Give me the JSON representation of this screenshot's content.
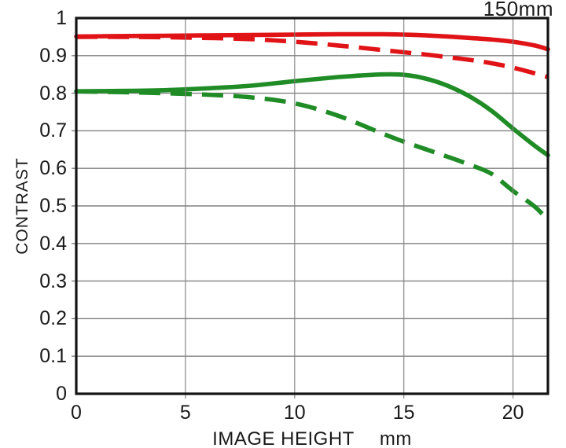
{
  "chart_data": {
    "type": "line",
    "title": "150mm",
    "xlabel": "IMAGE HEIGHT",
    "xlabel_unit": "mm",
    "ylabel": "CONTRAST",
    "xlim": [
      0,
      21.6
    ],
    "ylim": [
      0,
      1
    ],
    "grid": true,
    "legend": "none",
    "x_ticks": {
      "values": [
        0,
        5,
        10,
        15,
        20
      ],
      "labels": [
        "0",
        "5",
        "10",
        "15",
        "20"
      ]
    },
    "y_ticks": {
      "values": [
        1,
        0.9,
        0.8,
        0.7,
        0.6,
        0.5,
        0.4,
        0.3,
        0.2,
        0.1,
        0
      ],
      "labels": [
        "1",
        "0.9",
        "0.8",
        "0.7",
        "0.6",
        "0.5",
        "0.4",
        "0.3",
        "0.2",
        "0.1",
        "0"
      ]
    },
    "colors": {
      "red": "#e01317",
      "green": "#1f8c26",
      "grid": "#808080",
      "frame": "#141414"
    },
    "series": [
      {
        "name": "green-dashed",
        "color": "#1f8c26",
        "style": "dashed",
        "x": [
          0,
          2,
          4,
          6,
          8,
          10,
          12,
          14,
          15,
          16,
          17,
          18,
          19,
          20,
          21,
          21.6
        ],
        "y": [
          0.805,
          0.803,
          0.8,
          0.796,
          0.789,
          0.773,
          0.74,
          0.693,
          0.671,
          0.651,
          0.631,
          0.61,
          0.586,
          0.54,
          0.498,
          0.462
        ]
      },
      {
        "name": "green-solid",
        "color": "#1f8c26",
        "style": "solid",
        "x": [
          0,
          2,
          4,
          6,
          8,
          10,
          12,
          13,
          14,
          15,
          16,
          17,
          18,
          19,
          20,
          21,
          21.6
        ],
        "y": [
          0.805,
          0.806,
          0.808,
          0.813,
          0.82,
          0.832,
          0.843,
          0.847,
          0.85,
          0.849,
          0.839,
          0.82,
          0.792,
          0.754,
          0.706,
          0.66,
          0.635
        ]
      },
      {
        "name": "red-dashed",
        "color": "#e01317",
        "style": "dashed",
        "x": [
          0,
          2,
          4,
          6,
          8,
          10,
          12,
          14,
          15,
          16,
          17,
          18,
          19,
          20,
          21,
          21.6
        ],
        "y": [
          0.95,
          0.95,
          0.949,
          0.947,
          0.944,
          0.937,
          0.927,
          0.915,
          0.909,
          0.903,
          0.896,
          0.889,
          0.88,
          0.868,
          0.853,
          0.843
        ]
      },
      {
        "name": "red-solid",
        "color": "#e01317",
        "style": "solid",
        "x": [
          0,
          2,
          4,
          6,
          8,
          10,
          12,
          14,
          15,
          16,
          17,
          18,
          19,
          20,
          21,
          21.6
        ],
        "y": [
          0.951,
          0.952,
          0.953,
          0.954,
          0.955,
          0.956,
          0.957,
          0.957,
          0.956,
          0.954,
          0.951,
          0.947,
          0.943,
          0.937,
          0.927,
          0.917
        ]
      }
    ]
  }
}
